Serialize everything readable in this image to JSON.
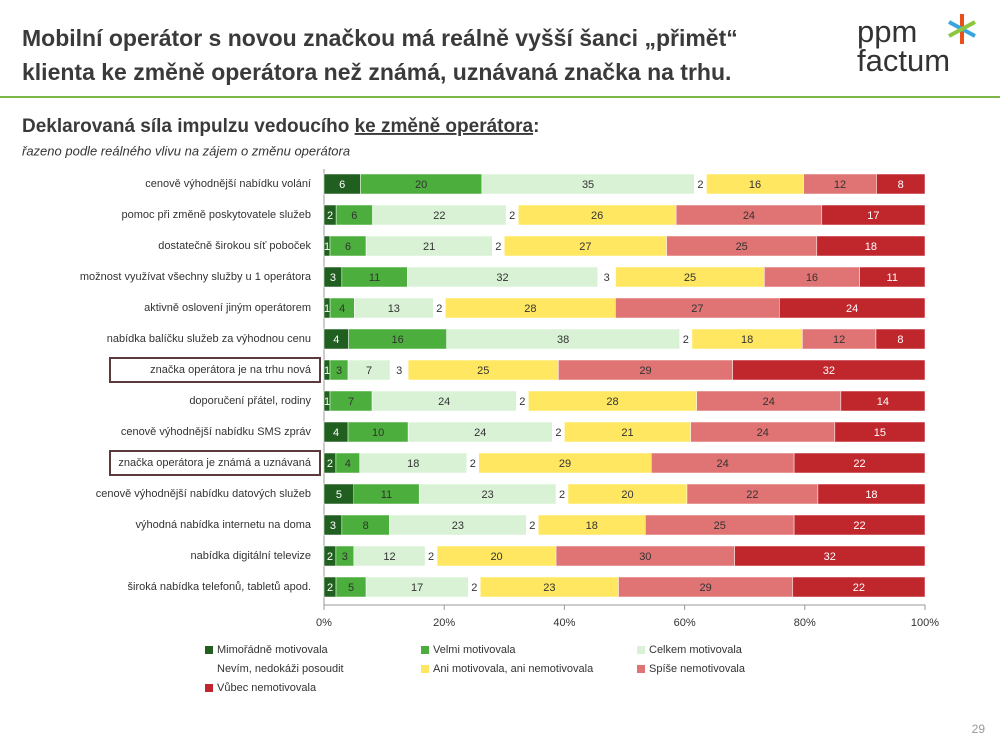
{
  "header": {
    "title_lines": [
      "Mobilní operátor s novou značkou má reálně vyšší šanci „přimět“",
      "klienta ke změně operátora než známá, uznávaná značka na trhu."
    ],
    "logo": [
      "ppm",
      "factum"
    ]
  },
  "subtitle": {
    "lead": "Deklarovaná síla impulzu vedoucího ",
    "underlined": "ke změně operátora",
    "tail": ":"
  },
  "note": "řazeno podle reálného vlivu na zájem o změnu operátora",
  "page_number": "29",
  "chart_data": {
    "type": "stacked-bar-100",
    "categories": [
      "cenově výhodnější nabídku volání",
      "pomoc při změně poskytovatele služeb",
      "dostatečně širokou síť poboček",
      "možnost využívat všechny služby u 1 operátora",
      "aktivně oslovení jiným operátorem",
      "nabídka balíčku služeb za výhodnou cenu",
      "značka operátora je na trhu nová",
      "doporučení přátel, rodiny",
      "cenově výhodnější nabídku SMS zpráv",
      "značka operátora je známá a uznávaná",
      "cenově výhodnější nabídku datových služeb",
      "výhodná nabídka internetu na doma",
      "nabídka digitální televize",
      "široká nabídka telefonů, tabletů apod."
    ],
    "highlighted": [
      6,
      9
    ],
    "series": [
      {
        "name": "Mimořádně motivovala",
        "color": "#215f21",
        "values": [
          6,
          2,
          1,
          3,
          1,
          4,
          1,
          1,
          4,
          2,
          5,
          3,
          2,
          2
        ]
      },
      {
        "name": "Velmi motivovala",
        "color": "#4cae3c",
        "values": [
          20,
          6,
          6,
          11,
          4,
          16,
          3,
          7,
          10,
          4,
          11,
          8,
          3,
          5
        ]
      },
      {
        "name": "Celkem motivovala",
        "color": "#d9f2d6",
        "values": [
          35,
          22,
          21,
          32,
          13,
          38,
          7,
          24,
          24,
          18,
          23,
          23,
          12,
          17
        ]
      },
      {
        "name": "Nevím, nedokáži posoudit",
        "color": "#ffffff",
        "values": [
          2,
          2,
          2,
          3,
          2,
          2,
          3,
          2,
          2,
          2,
          2,
          2,
          2,
          2
        ]
      },
      {
        "name": "Ani motivovala, ani nemotivovala",
        "color": "#ffe761",
        "values": [
          16,
          26,
          27,
          25,
          28,
          18,
          25,
          28,
          21,
          29,
          20,
          18,
          20,
          23
        ]
      },
      {
        "name": "Spíše nemotivovala",
        "color": "#e07373",
        "values": [
          12,
          24,
          25,
          16,
          27,
          12,
          29,
          24,
          24,
          24,
          22,
          25,
          30,
          29
        ]
      },
      {
        "name": "Vůbec nemotivovala",
        "color": "#c0272d",
        "values": [
          8,
          17,
          18,
          11,
          24,
          8,
          32,
          14,
          15,
          22,
          18,
          22,
          32,
          22
        ]
      }
    ],
    "xlim": [
      0,
      100
    ],
    "xticks": [
      {
        "value": 0,
        "label": "0%"
      },
      {
        "value": 20,
        "label": "20%"
      },
      {
        "value": 40,
        "label": "40%"
      },
      {
        "value": 60,
        "label": "60%"
      },
      {
        "value": 80,
        "label": "80%"
      },
      {
        "value": 100,
        "label": "100%"
      }
    ]
  }
}
